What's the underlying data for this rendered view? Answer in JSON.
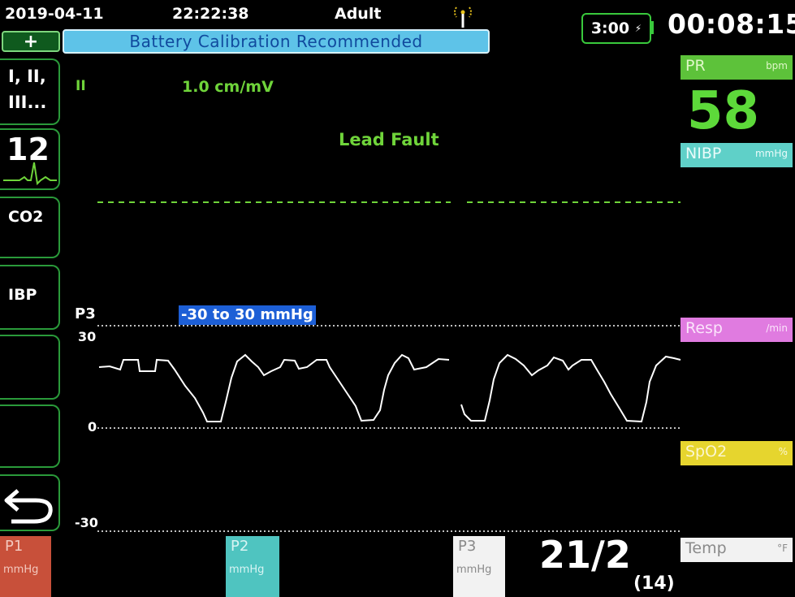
{
  "status_bar": {
    "date": "2019-04-11",
    "time": "22:22:38",
    "patient_mode": "Adult"
  },
  "banner": {
    "plus_label": "+",
    "message": "Battery Calibration Recommended"
  },
  "battery": {
    "remaining": "3:00"
  },
  "elapsed_time": "00:08:15",
  "sidebar": {
    "leads_line1": "I, II,",
    "leads_line2": "III...",
    "twelve_lead": "12",
    "co2": "CO2",
    "ibp": "IBP"
  },
  "ecg": {
    "lead": "II",
    "gain": "1.0 cm/mV",
    "fault": "Lead Fault"
  },
  "pressure_wave": {
    "label": "P3",
    "scale": "-30 to 30 mmHg",
    "y_top": "30",
    "y_mid": "0",
    "y_bottom": "-30"
  },
  "right_panel": {
    "pr": {
      "name": "PR",
      "unit": "bpm",
      "value": "58"
    },
    "nibp": {
      "name": "NIBP",
      "unit": "mmHg"
    },
    "resp": {
      "name": "Resp",
      "unit": "/min"
    },
    "spo2": {
      "name": "SpO2",
      "unit": "%"
    },
    "temp": {
      "name": "Temp",
      "unit": "°F"
    }
  },
  "bottom_tiles": {
    "p1": {
      "name": "P1",
      "unit": "mmHg"
    },
    "p2": {
      "name": "P2",
      "unit": "mmHg"
    },
    "p3": {
      "name": "P3",
      "unit": "mmHg",
      "value": "21/2",
      "mean": "(14)"
    }
  },
  "colors": {
    "ecg_green": "#6fd43a",
    "pr_green": "#5dd93a",
    "nibp_cyan": "#5fd0c8",
    "resp_pink": "#e07be0",
    "spo2_yellow": "#e6d52e",
    "p1_red": "#c8503a",
    "p2_teal": "#4fc4c0",
    "banner_blue": "#5ec3e8"
  }
}
